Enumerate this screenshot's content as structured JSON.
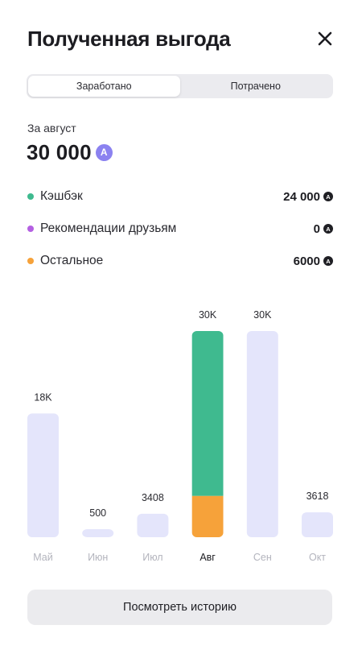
{
  "header": {
    "title": "Полученная выгода",
    "close_icon": "close-icon"
  },
  "tabs": [
    {
      "label": "Заработано",
      "active": true
    },
    {
      "label": "Потрачено",
      "active": false
    }
  ],
  "summary": {
    "period_label": "За август",
    "total": "30 000",
    "currency_icon": "A"
  },
  "breakdown": [
    {
      "label": "Кэшбэк",
      "value": "24 000",
      "color": "#3fba8f"
    },
    {
      "label": "Рекомендации друзьям",
      "value": "0",
      "color": "#b460e2"
    },
    {
      "label": "Остальное",
      "value": "6000",
      "color": "#f6a23a"
    }
  ],
  "chart_data": {
    "type": "bar",
    "categories": [
      "Май",
      "Июн",
      "Июл",
      "Авг",
      "Сен",
      "Окт"
    ],
    "labels": [
      "18K",
      "500",
      "3408",
      "30K",
      "30K",
      "3618"
    ],
    "values": [
      18000,
      500,
      3408,
      30000,
      30000,
      3618
    ],
    "selected": "Авг",
    "selected_segments": [
      {
        "name": "Кэшбэк",
        "value": 24000,
        "color": "#3fba8f"
      },
      {
        "name": "Остальное",
        "value": 6000,
        "color": "#f6a23a"
      }
    ],
    "bar_color": "#e4e5fb",
    "ylim": [
      0,
      30000
    ]
  },
  "footer": {
    "history_button": "Посмотреть историю"
  }
}
